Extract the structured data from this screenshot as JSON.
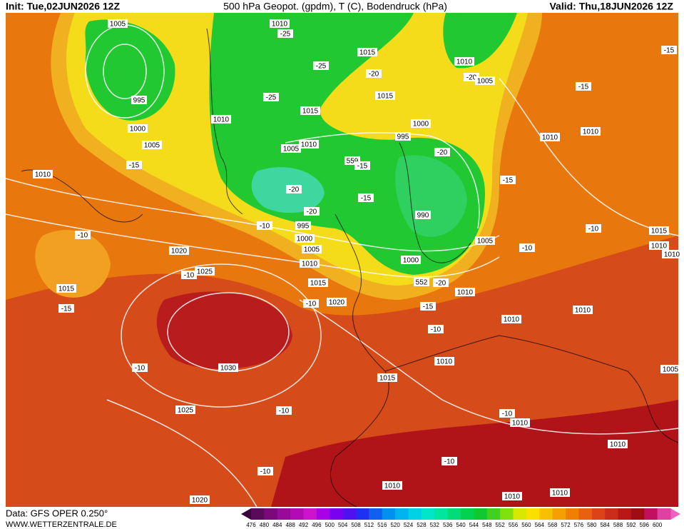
{
  "header": {
    "init": "Init: Tue,02JUN2026 12Z",
    "title": "500 hPa Geopot. (gpdm), T (C), Bodendruck (hPa)",
    "valid": "Valid: Thu,18JUN2026 12Z"
  },
  "footer": {
    "data": "Data: GFS OPER 0.250°",
    "site": "WWW.WETTERZENTRALE.DE"
  },
  "colorbar": {
    "labels": [
      476,
      480,
      484,
      488,
      492,
      496,
      500,
      504,
      508,
      512,
      516,
      520,
      524,
      528,
      532,
      536,
      540,
      544,
      548,
      552,
      556,
      560,
      564,
      568,
      572,
      576,
      580,
      584,
      588,
      592,
      596,
      600
    ]
  },
  "map": {
    "labels": [
      1005,
      1010,
      -25,
      1015,
      1010,
      -20,
      -25,
      -20,
      1005,
      -15,
      -15,
      -25,
      1015,
      995,
      1015,
      1010,
      1000,
      1000,
      1010,
      1010,
      995,
      1005,
      1010,
      1005,
      -20,
      559,
      -15,
      -15,
      1010,
      -15,
      -20,
      -15,
      -20,
      990,
      -10,
      995,
      -10,
      1015,
      1000,
      1005,
      1010,
      -10,
      1020,
      -10,
      1005,
      1010,
      1000,
      1010,
      1025,
      -10,
      1015,
      552,
      -20,
      1015,
      1010,
      1020,
      -10,
      -15,
      -15,
      1010,
      1010,
      -10,
      1010,
      -10,
      1030,
      1005,
      1015,
      -10,
      1025,
      -10,
      1010,
      1010,
      -10,
      -10,
      1010,
      1020,
      1010,
      1010
    ]
  }
}
